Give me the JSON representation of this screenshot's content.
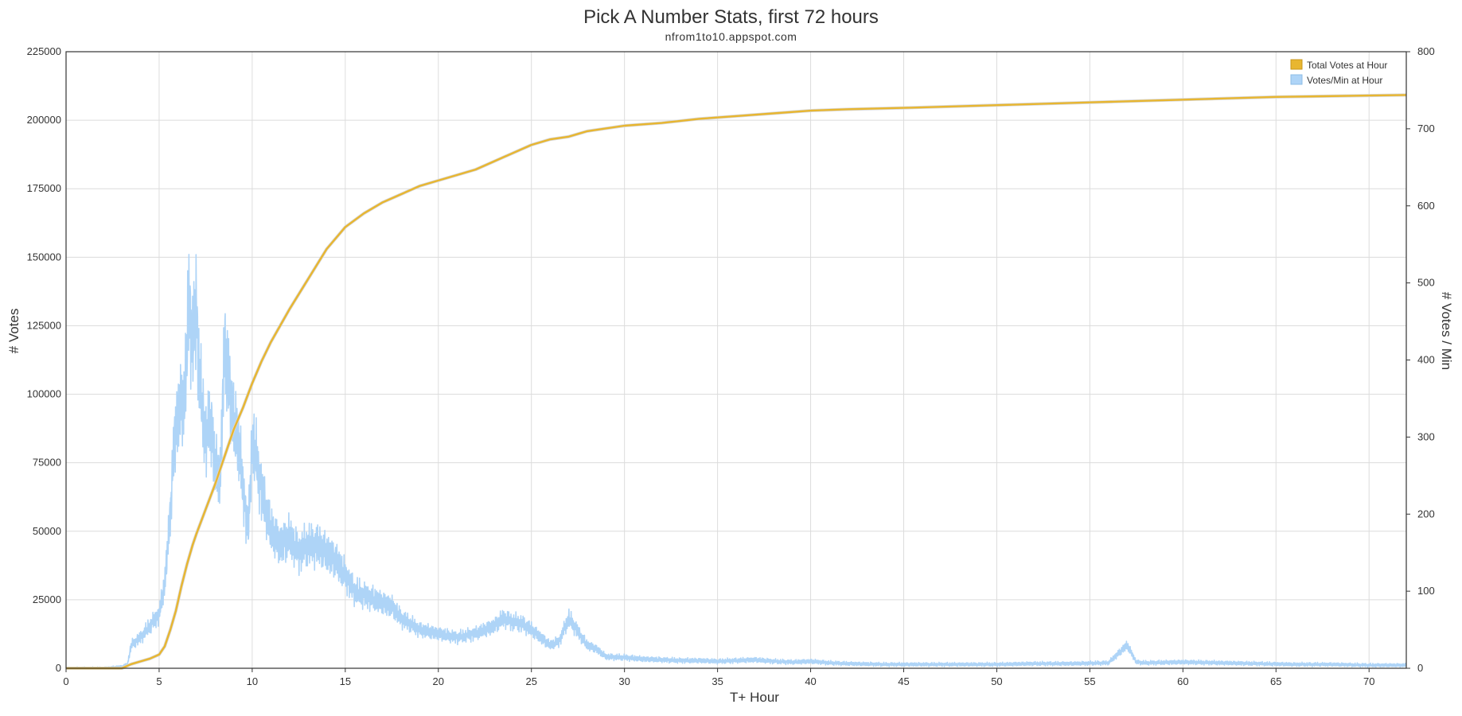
{
  "chart_data": {
    "type": "line",
    "title": "Pick A Number Stats, first 72 hours",
    "subtitle": "nfrom1to10.appspot.com",
    "xlabel": "T+ Hour",
    "ylabel_left": "# Votes",
    "ylabel_right": "# Votes / Min",
    "xlim": [
      0,
      72
    ],
    "ylim_left": [
      0,
      225000
    ],
    "ylim_right": [
      0,
      800
    ],
    "x_ticks": [
      "0",
      "5",
      "10",
      "15",
      "20",
      "25",
      "30",
      "35",
      "40",
      "45",
      "50",
      "55",
      "60",
      "65",
      "70"
    ],
    "y_left_ticks": [
      "0",
      "25000",
      "50000",
      "75000",
      "100000",
      "125000",
      "150000",
      "175000",
      "200000",
      "225000"
    ],
    "y_right_ticks": [
      "0",
      "100",
      "200",
      "300",
      "400",
      "500",
      "600",
      "700",
      "800"
    ],
    "grid": true,
    "legend_position": "top-right",
    "colors": {
      "total": "#e8b630",
      "rate": "#aed4f7",
      "frame": "#333333"
    },
    "series": [
      {
        "name": "Total Votes at Hour",
        "axis": "left",
        "x": [
          0,
          3,
          3.5,
          4,
          4.5,
          5,
          5.3,
          5.6,
          5.9,
          6.2,
          6.5,
          6.8,
          7,
          7.5,
          8,
          8.5,
          9,
          9.5,
          10,
          10.5,
          11,
          12,
          13,
          14,
          15,
          16,
          17,
          18,
          19,
          20,
          21,
          22,
          23,
          24,
          25,
          26,
          27,
          27.5,
          28,
          29,
          30,
          32,
          34,
          36,
          38,
          40,
          42,
          45,
          50,
          55,
          60,
          65,
          70,
          72
        ],
        "y": [
          0,
          0,
          1500,
          2500,
          3500,
          5000,
          8000,
          14000,
          21000,
          30000,
          38000,
          45000,
          49000,
          58000,
          67000,
          77000,
          87000,
          95000,
          104000,
          112000,
          119000,
          131000,
          142000,
          153000,
          161000,
          166000,
          170000,
          173000,
          176000,
          178000,
          180000,
          182000,
          185000,
          188000,
          191000,
          193000,
          194000,
          195000,
          196000,
          197000,
          198000,
          199000,
          200500,
          201500,
          202500,
          203500,
          204000,
          204500,
          205500,
          206500,
          207500,
          208500,
          209000,
          209200
        ]
      },
      {
        "name": "Votes/Min at Hour",
        "axis": "right",
        "x": [
          0,
          2,
          3,
          3.3,
          3.5,
          4,
          4.5,
          5,
          5.3,
          5.6,
          5.8,
          6,
          6.2,
          6.4,
          6.6,
          6.8,
          7,
          7.2,
          7.5,
          7.8,
          8,
          8.3,
          8.5,
          8.7,
          9,
          9.3,
          9.5,
          9.8,
          10,
          10.3,
          10.5,
          11,
          11.5,
          12,
          12.5,
          13,
          13.5,
          14,
          14.5,
          15,
          15.5,
          16,
          17,
          17.5,
          18,
          19,
          20,
          21,
          22,
          23,
          23.5,
          24,
          24.5,
          25,
          25.5,
          26,
          26.5,
          27,
          27.3,
          27.7,
          28,
          28.5,
          29,
          30,
          31,
          32,
          33,
          34,
          35,
          36,
          37,
          38,
          39,
          40,
          41,
          42,
          44,
          46,
          48,
          50,
          52,
          54,
          56,
          57,
          57.5,
          58,
          60,
          62,
          64,
          66,
          68,
          70,
          72
        ],
        "y": [
          0,
          0,
          2,
          5,
          30,
          40,
          55,
          70,
          110,
          200,
          290,
          330,
          340,
          360,
          480,
          420,
          470,
          360,
          300,
          320,
          260,
          250,
          420,
          380,
          320,
          290,
          230,
          180,
          300,
          260,
          230,
          180,
          160,
          170,
          150,
          160,
          160,
          150,
          140,
          120,
          100,
          95,
          85,
          80,
          65,
          50,
          45,
          40,
          45,
          55,
          65,
          60,
          58,
          50,
          40,
          30,
          35,
          65,
          55,
          40,
          30,
          25,
          15,
          14,
          12,
          11,
          10,
          10,
          9,
          10,
          11,
          9,
          8,
          9,
          7,
          6,
          5,
          5,
          5,
          5,
          6,
          6,
          7,
          30,
          8,
          7,
          8,
          7,
          6,
          5,
          5,
          4,
          4
        ]
      }
    ]
  }
}
